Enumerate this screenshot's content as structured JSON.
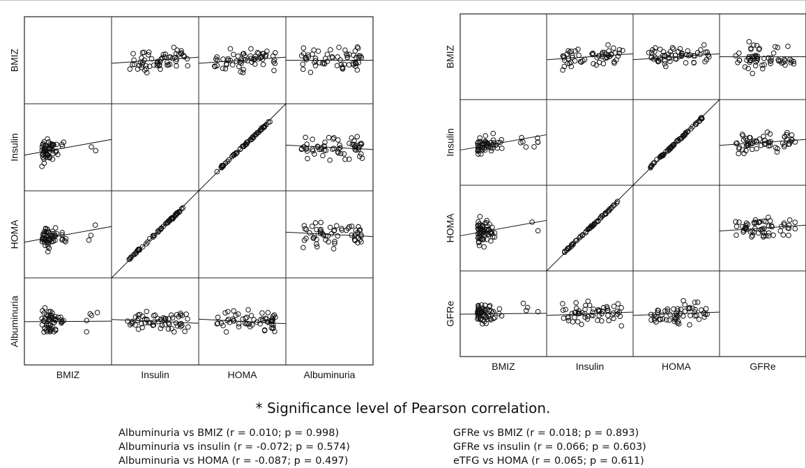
{
  "chart_data": [
    {
      "type": "scatter",
      "subtype": "scatterplot-matrix",
      "variables": [
        "BMIZ",
        "Insulin",
        "HOMA",
        "Albuminuria"
      ],
      "fit_lines": true,
      "cells": [
        {
          "x": "Insulin",
          "y": "BMIZ",
          "trend": "slight positive"
        },
        {
          "x": "HOMA",
          "y": "BMIZ",
          "trend": "slight positive"
        },
        {
          "x": "Albuminuria",
          "y": "BMIZ",
          "trend": "flat"
        },
        {
          "x": "BMIZ",
          "y": "Insulin",
          "trend": "positive"
        },
        {
          "x": "HOMA",
          "y": "Insulin",
          "trend": "strong positive"
        },
        {
          "x": "Albuminuria",
          "y": "Insulin",
          "trend": "slight negative"
        },
        {
          "x": "BMIZ",
          "y": "HOMA",
          "trend": "positive"
        },
        {
          "x": "Insulin",
          "y": "HOMA",
          "trend": "strong positive"
        },
        {
          "x": "Albuminuria",
          "y": "HOMA",
          "trend": "slight negative"
        },
        {
          "x": "BMIZ",
          "y": "Albuminuria",
          "r": 0.01,
          "p": 0.998
        },
        {
          "x": "Insulin",
          "y": "Albuminuria",
          "r": -0.072,
          "p": 0.574
        },
        {
          "x": "HOMA",
          "y": "Albuminuria",
          "r": -0.087,
          "p": 0.497
        }
      ]
    },
    {
      "type": "scatter",
      "subtype": "scatterplot-matrix",
      "variables": [
        "BMIZ",
        "Insulin",
        "HOMA",
        "GFRe"
      ],
      "fit_lines": true,
      "cells": [
        {
          "x": "Insulin",
          "y": "BMIZ",
          "trend": "slight positive"
        },
        {
          "x": "HOMA",
          "y": "BMIZ",
          "trend": "slight positive"
        },
        {
          "x": "GFRe",
          "y": "BMIZ",
          "trend": "flat"
        },
        {
          "x": "BMIZ",
          "y": "Insulin",
          "trend": "positive"
        },
        {
          "x": "HOMA",
          "y": "Insulin",
          "trend": "strong positive"
        },
        {
          "x": "GFRe",
          "y": "Insulin",
          "trend": "slight positive"
        },
        {
          "x": "BMIZ",
          "y": "HOMA",
          "trend": "positive"
        },
        {
          "x": "Insulin",
          "y": "HOMA",
          "trend": "strong positive"
        },
        {
          "x": "GFRe",
          "y": "HOMA",
          "trend": "slight positive"
        },
        {
          "x": "BMIZ",
          "y": "GFRe",
          "r": 0.018,
          "p": 0.893
        },
        {
          "x": "Insulin",
          "y": "GFRe",
          "r": 0.066,
          "p": 0.603
        },
        {
          "x": "HOMA",
          "y": "GFRe",
          "r": 0.065,
          "p": 0.611
        }
      ]
    }
  ],
  "caption": "* Significance level of Pearson correlation.",
  "stats_left": [
    "Albuminuria  vs BMIZ (r = 0.010; p = 0.998)",
    "Albuminuria  vs insulin  (r = -0.072; p = 0.574)",
    "Albuminuria  vs HOMA  (r = -0.087; p = 0.497)"
  ],
  "stats_right": [
    "GFRe vs BMIZ (r = 0.018; p = 0.893)",
    "GFRe vs insulin  (r = 0.066; p = 0.603)",
    "eTFG vs HOMA  (r = 0.065; p = 0.611)"
  ]
}
